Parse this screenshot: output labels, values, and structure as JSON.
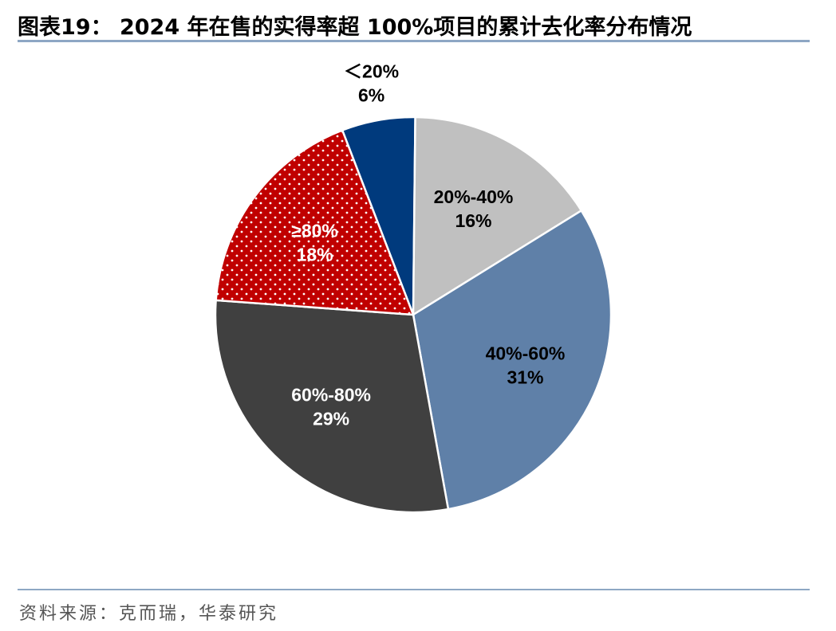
{
  "header": {
    "title": "图表19：  2024 年在售的实得率超 100%项目的累计去化率分布情况"
  },
  "footer": {
    "source": "资料来源：克而瑞，华泰研究"
  },
  "chart_data": {
    "type": "pie",
    "title": "2024 年在售的实得率超 100%项目的累计去化率分布情况",
    "slices": [
      {
        "label": "＜20%",
        "pct_text": "6%",
        "value": 6,
        "color": "#003a7d",
        "label_color": "#000000"
      },
      {
        "label": "20%-40%",
        "pct_text": "16%",
        "value": 16,
        "color": "#c0c0c0",
        "label_color": "#000000"
      },
      {
        "label": "40%-60%",
        "pct_text": "31%",
        "value": 31,
        "color": "#5f80a8",
        "label_color": "#000000"
      },
      {
        "label": "60%-80%",
        "pct_text": "29%",
        "value": 29,
        "color": "#404040",
        "label_color": "#ffffff"
      },
      {
        "label": "≥80%",
        "pct_text": "18%",
        "value": 18,
        "color": "#c00000",
        "label_color": "#ffffff",
        "pattern": "dots"
      }
    ]
  }
}
